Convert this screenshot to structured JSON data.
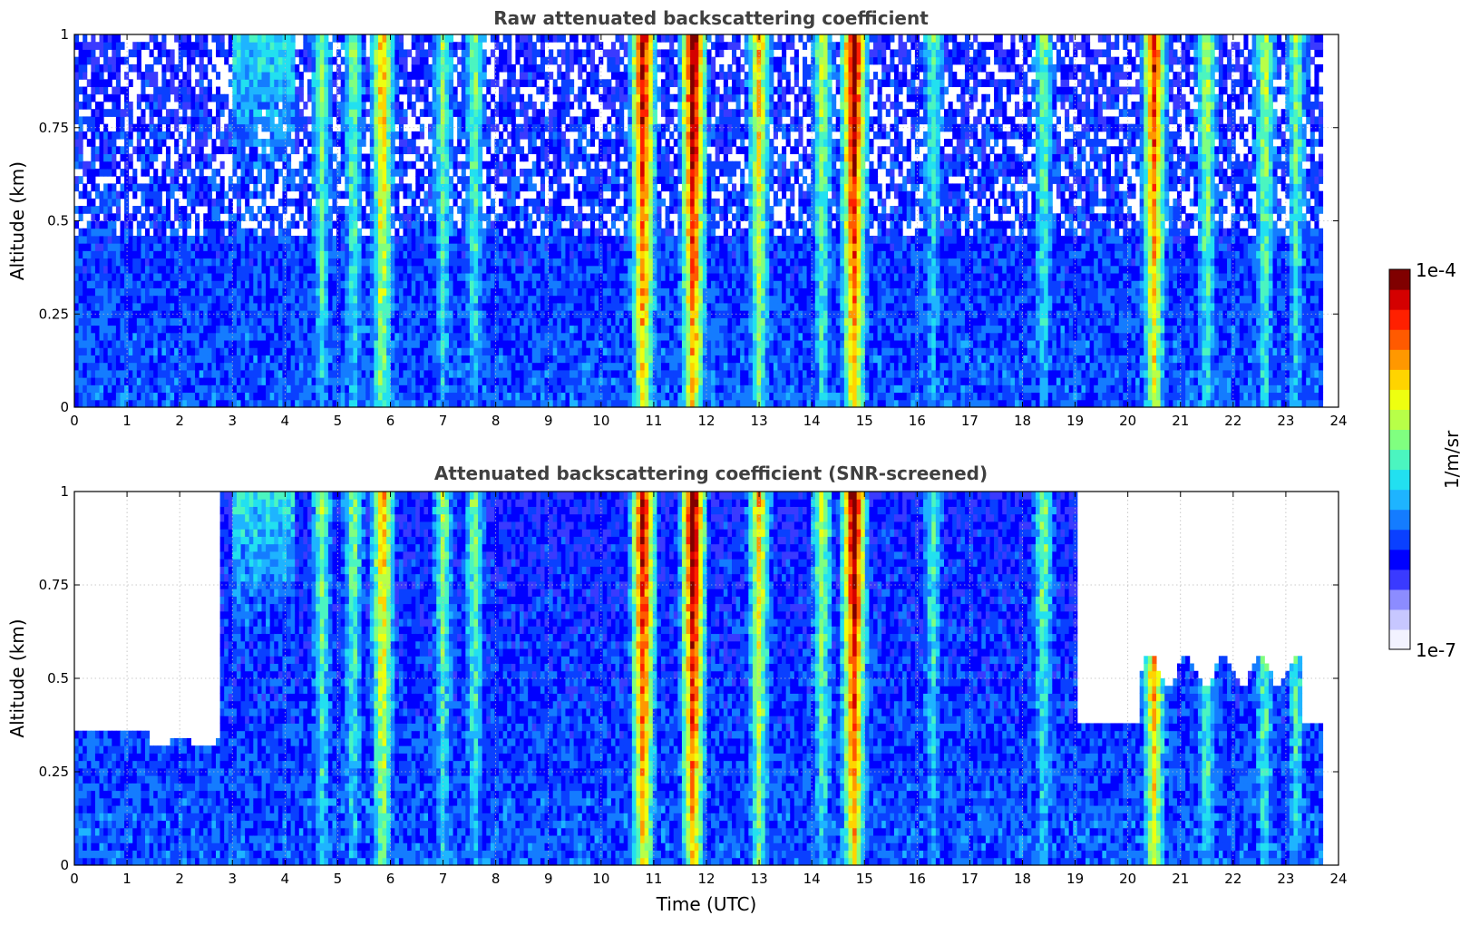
{
  "colorbar": {
    "label": "1/m/sr",
    "max_label": "1e-4",
    "min_label": "1e-7",
    "colors": [
      "#f2f2ff",
      "#c7c7ff",
      "#8c8cff",
      "#3a3aff",
      "#0000ff",
      "#0a40ff",
      "#147cff",
      "#1eb4ff",
      "#22e0f0",
      "#4bf5c0",
      "#80ff80",
      "#b8ff48",
      "#eeff10",
      "#ffd400",
      "#ff9800",
      "#ff5a00",
      "#ff2000",
      "#d40000",
      "#800000"
    ]
  },
  "chart_data": [
    {
      "type": "heatmap",
      "title": "Raw attenuated backscattering coefficient",
      "xlabel": "",
      "ylabel": "Altitude (km)",
      "xlim": [
        0,
        24
      ],
      "ylim": [
        0,
        1
      ],
      "x_ticks": [
        "0",
        "1",
        "2",
        "3",
        "4",
        "5",
        "6",
        "7",
        "8",
        "9",
        "10",
        "11",
        "12",
        "13",
        "14",
        "15",
        "16",
        "17",
        "18",
        "19",
        "20",
        "21",
        "22",
        "23",
        "24"
      ],
      "y_ticks": [
        "0",
        "0.25",
        "0.5",
        "0.75",
        "1"
      ],
      "y_tick_values": [
        0,
        0.25,
        0.5,
        0.75,
        1
      ],
      "grid": true,
      "colorscale": "jet",
      "log_range": [
        1e-07,
        0.0001
      ],
      "data_end_utc": 23.7
    },
    {
      "type": "heatmap",
      "title": "Attenuated backscattering coefficient (SNR-screened)",
      "xlabel": "Time (UTC)",
      "ylabel": "Altitude (km)",
      "xlim": [
        0,
        24
      ],
      "ylim": [
        0,
        1
      ],
      "x_ticks": [
        "0",
        "1",
        "2",
        "3",
        "4",
        "5",
        "6",
        "7",
        "8",
        "9",
        "10",
        "11",
        "12",
        "13",
        "14",
        "15",
        "16",
        "17",
        "18",
        "19",
        "20",
        "21",
        "22",
        "23",
        "24"
      ],
      "y_ticks": [
        "0",
        "0.25",
        "0.5",
        "0.75",
        "1"
      ],
      "y_tick_values": [
        0,
        0.25,
        0.5,
        0.75,
        1
      ],
      "grid": true,
      "colorscale": "jet",
      "log_range": [
        1e-07,
        0.0001
      ],
      "data_end_utc": 23.7
    }
  ]
}
